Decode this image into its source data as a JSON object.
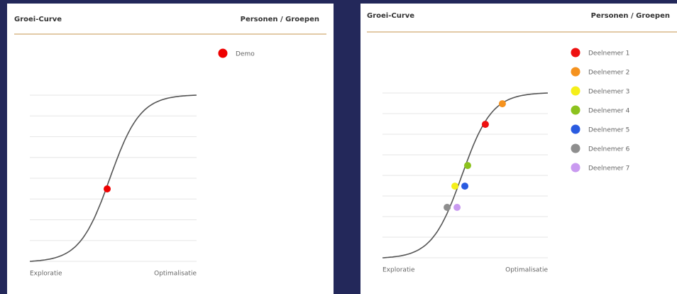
{
  "chart_data": [
    {
      "type": "scatter",
      "title": "Groei-Curve",
      "legend_title": "Personen / Groepen",
      "xlabels": [
        "Exploratie",
        "Optimalisatie"
      ],
      "xlim": [
        0,
        100
      ],
      "ylim": [
        0,
        100
      ],
      "series": [
        {
          "name": "Demo",
          "color": "#ee0000",
          "x": [
            46.4
          ],
          "values": [
            43.6
          ]
        }
      ]
    },
    {
      "type": "scatter",
      "title": "Groei-Curve",
      "legend_title": "Personen / Groepen",
      "xlabels": [
        "Exploratie",
        "Optimalisatie"
      ],
      "xlim": [
        0,
        100
      ],
      "ylim": [
        0,
        100
      ],
      "series": [
        {
          "name": "Deelnemer 1",
          "color": "#ee1111",
          "x": [
            62.2
          ],
          "values": [
            81.0
          ]
        },
        {
          "name": "Deelnemer 2",
          "color": "#f5921e",
          "x": [
            72.5
          ],
          "values": [
            93.5
          ]
        },
        {
          "name": "Deelnemer 3",
          "color": "#f5ef1a",
          "x": [
            43.8
          ],
          "values": [
            43.5
          ]
        },
        {
          "name": "Deelnemer 4",
          "color": "#8cc21e",
          "x": [
            51.5
          ],
          "values": [
            56.0
          ]
        },
        {
          "name": "Deelnemer 5",
          "color": "#2a5be0",
          "x": [
            49.8
          ],
          "values": [
            43.5
          ]
        },
        {
          "name": "Deelnemer 6",
          "color": "#8e8e8e",
          "x": [
            39.1
          ],
          "values": [
            30.6
          ]
        },
        {
          "name": "Deelnemer 7",
          "color": "#c99af0",
          "x": [
            45.1
          ],
          "values": [
            30.6
          ]
        }
      ]
    }
  ]
}
